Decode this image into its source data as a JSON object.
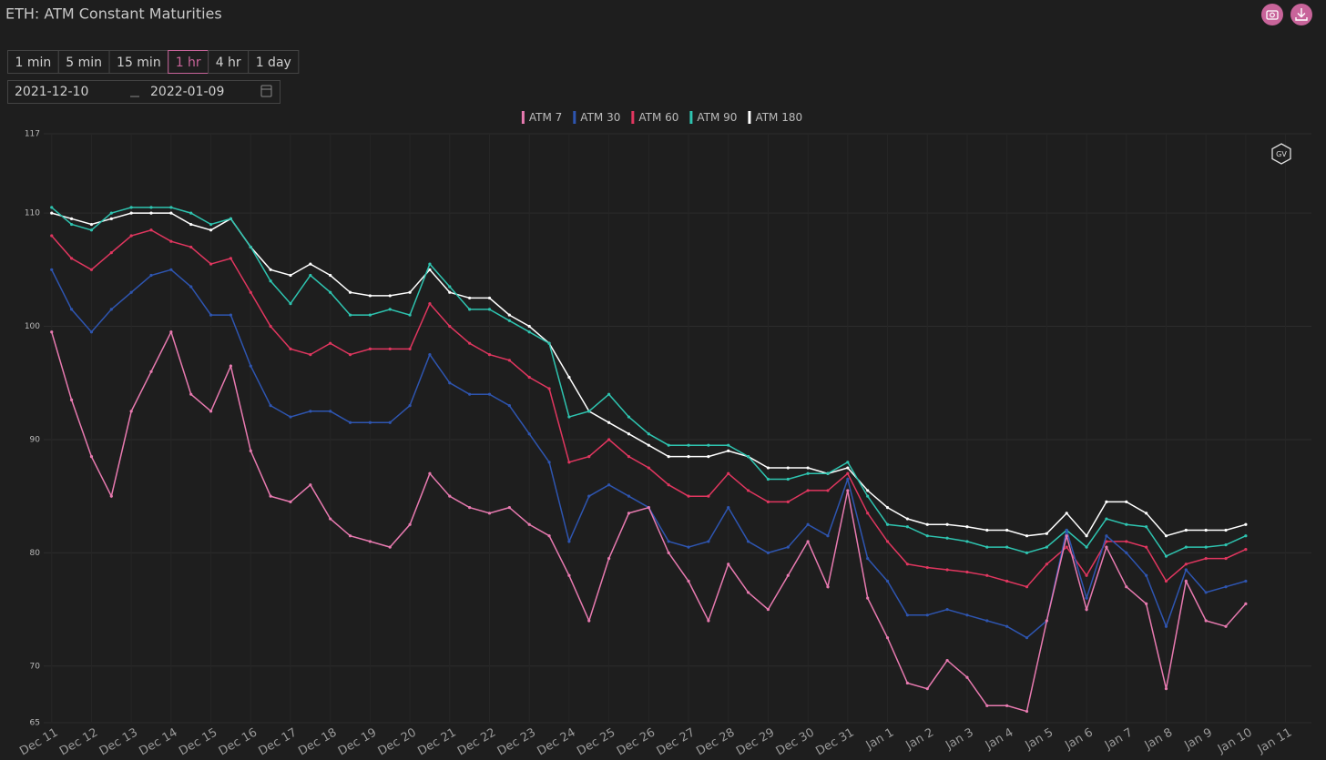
{
  "header": {
    "title": "ETH: ATM Constant Maturities"
  },
  "controls": {
    "intervals": [
      "1 min",
      "5 min",
      "15 min",
      "1 hr",
      "4 hr",
      "1 day"
    ],
    "selected": 3,
    "date_from": "2021-12-10",
    "date_to": "2022-01-09"
  },
  "chart_data": {
    "type": "line",
    "legend": "top",
    "grid": true,
    "watermark": "GV",
    "xlim": [
      10.8,
      42.65
    ],
    "xticks": [
      {
        "value": 11,
        "label": "Dec 11"
      },
      {
        "value": 12,
        "label": "Dec 12"
      },
      {
        "value": 13,
        "label": "Dec 13"
      },
      {
        "value": 14,
        "label": "Dec 14"
      },
      {
        "value": 15,
        "label": "Dec 15"
      },
      {
        "value": 16,
        "label": "Dec 16"
      },
      {
        "value": 17,
        "label": "Dec 17"
      },
      {
        "value": 18,
        "label": "Dec 18"
      },
      {
        "value": 19,
        "label": "Dec 19"
      },
      {
        "value": 20,
        "label": "Dec 20"
      },
      {
        "value": 21,
        "label": "Dec 21"
      },
      {
        "value": 22,
        "label": "Dec 22"
      },
      {
        "value": 23,
        "label": "Dec 23"
      },
      {
        "value": 24,
        "label": "Dec 24"
      },
      {
        "value": 25,
        "label": "Dec 25"
      },
      {
        "value": 26,
        "label": "Dec 26"
      },
      {
        "value": 27,
        "label": "Dec 27"
      },
      {
        "value": 28,
        "label": "Dec 28"
      },
      {
        "value": 29,
        "label": "Dec 29"
      },
      {
        "value": 30,
        "label": "Dec 30"
      },
      {
        "value": 31,
        "label": "Dec 31"
      },
      {
        "value": 32,
        "label": "Jan 1"
      },
      {
        "value": 33,
        "label": "Jan 2"
      },
      {
        "value": 34,
        "label": "Jan 3"
      },
      {
        "value": 35,
        "label": "Jan 4"
      },
      {
        "value": 36,
        "label": "Jan 5"
      },
      {
        "value": 37,
        "label": "Jan 6"
      },
      {
        "value": 38,
        "label": "Jan 7"
      },
      {
        "value": 39,
        "label": "Jan 8"
      },
      {
        "value": 40,
        "label": "Jan 9"
      },
      {
        "value": 41,
        "label": "Jan 10"
      },
      {
        "value": 42,
        "label": "Jan 11"
      }
    ],
    "ylim": [
      65,
      117
    ],
    "yticks": [
      65,
      70,
      80,
      90,
      100,
      110,
      117
    ],
    "x": [
      11,
      11.5,
      12,
      12.5,
      13,
      13.5,
      14,
      14.5,
      15,
      15.5,
      16,
      16.5,
      17,
      17.5,
      18,
      18.5,
      19,
      19.5,
      20,
      20.5,
      21,
      21.5,
      22,
      22.5,
      23,
      23.5,
      24,
      24.5,
      25,
      25.5,
      26,
      26.5,
      27,
      27.5,
      28,
      28.5,
      29,
      29.5,
      30,
      30.5,
      31,
      31.5,
      32,
      32.5,
      33,
      33.5,
      34,
      34.5,
      35,
      35.5,
      36,
      36.5,
      37,
      37.5,
      38,
      38.5,
      39,
      39.5,
      40,
      40.5,
      41
    ],
    "series": [
      {
        "name": "ATM 7",
        "color": "#e87ab0",
        "values": [
          99.5,
          93.5,
          88.5,
          85,
          92.5,
          96,
          99.5,
          94,
          92.5,
          96.5,
          89,
          85,
          84.5,
          86,
          83,
          81.5,
          81,
          80.5,
          82.5,
          87,
          85,
          84,
          83.5,
          84,
          82.5,
          81.5,
          78,
          74,
          79.5,
          83.5,
          84,
          80,
          77.5,
          74,
          79,
          76.5,
          75,
          78,
          81,
          77,
          85.5,
          76,
          72.5,
          68.5,
          68,
          70.5,
          69,
          66.5,
          66.5,
          66,
          74,
          81.5,
          75,
          80.5,
          77,
          75.5,
          68,
          77.5,
          74,
          73.5,
          75.5
        ]
      },
      {
        "name": "ATM 30",
        "color": "#2e55b0",
        "values": [
          105,
          101.5,
          99.5,
          101.5,
          103,
          104.5,
          105,
          103.5,
          101,
          101,
          96.5,
          93,
          92,
          92.5,
          92.5,
          91.5,
          91.5,
          91.5,
          93,
          97.5,
          95,
          94,
          94,
          93,
          90.5,
          88,
          81,
          85,
          86,
          85,
          84,
          81,
          80.5,
          81,
          84,
          81,
          80,
          80.5,
          82.5,
          81.5,
          86.5,
          79.5,
          77.5,
          74.5,
          74.5,
          75,
          74.5,
          74,
          73.5,
          72.5,
          74,
          82,
          76,
          81.5,
          80,
          78,
          73.5,
          78.5,
          76.5,
          77,
          77.5
        ]
      },
      {
        "name": "ATM 60",
        "color": "#e0365f",
        "values": [
          108,
          106,
          105,
          106.5,
          108,
          108.5,
          107.5,
          107,
          105.5,
          106,
          103,
          100,
          98,
          97.5,
          98.5,
          97.5,
          98,
          98,
          98,
          102,
          100,
          98.5,
          97.5,
          97,
          95.5,
          94.5,
          88,
          88.5,
          90,
          88.5,
          87.5,
          86,
          85,
          85,
          87,
          85.5,
          84.5,
          84.5,
          85.5,
          85.5,
          87,
          83.5,
          81,
          79,
          78.7,
          78.5,
          78.3,
          78,
          77.5,
          77,
          79,
          80.5,
          78,
          81,
          81,
          80.5,
          77.5,
          79,
          79.5,
          79.5,
          80.3
        ]
      },
      {
        "name": "ATM 90",
        "color": "#2ec4b0",
        "values": [
          110.5,
          109,
          108.5,
          110,
          110.5,
          110.5,
          110.5,
          110,
          109,
          109.5,
          107,
          104,
          102,
          104.5,
          103,
          101,
          101,
          101.5,
          101,
          105.5,
          103.5,
          101.5,
          101.5,
          100.5,
          99.5,
          98.5,
          92,
          92.5,
          94,
          92,
          90.5,
          89.5,
          89.5,
          89.5,
          89.5,
          88.5,
          86.5,
          86.5,
          87,
          87,
          88,
          85,
          82.5,
          82.3,
          81.5,
          81.3,
          81,
          80.5,
          80.5,
          80,
          80.5,
          82,
          80.5,
          83,
          82.5,
          82.3,
          79.7,
          80.5,
          80.5,
          80.7,
          81.5
        ]
      },
      {
        "name": "ATM 180",
        "color": "#ffffff",
        "values": [
          110,
          109.5,
          109,
          109.5,
          110,
          110,
          110,
          109,
          108.5,
          109.5,
          107,
          105,
          104.5,
          105.5,
          104.5,
          103,
          102.7,
          102.7,
          103,
          105,
          103,
          102.5,
          102.5,
          101,
          100,
          98.5,
          95.5,
          92.5,
          91.5,
          90.5,
          89.5,
          88.5,
          88.5,
          88.5,
          89,
          88.5,
          87.5,
          87.5,
          87.5,
          87,
          87.5,
          85.5,
          84,
          83,
          82.5,
          82.5,
          82.3,
          82,
          82,
          81.5,
          81.7,
          83.5,
          81.5,
          84.5,
          84.5,
          83.5,
          81.5,
          82,
          82,
          82,
          82.5
        ]
      }
    ]
  }
}
